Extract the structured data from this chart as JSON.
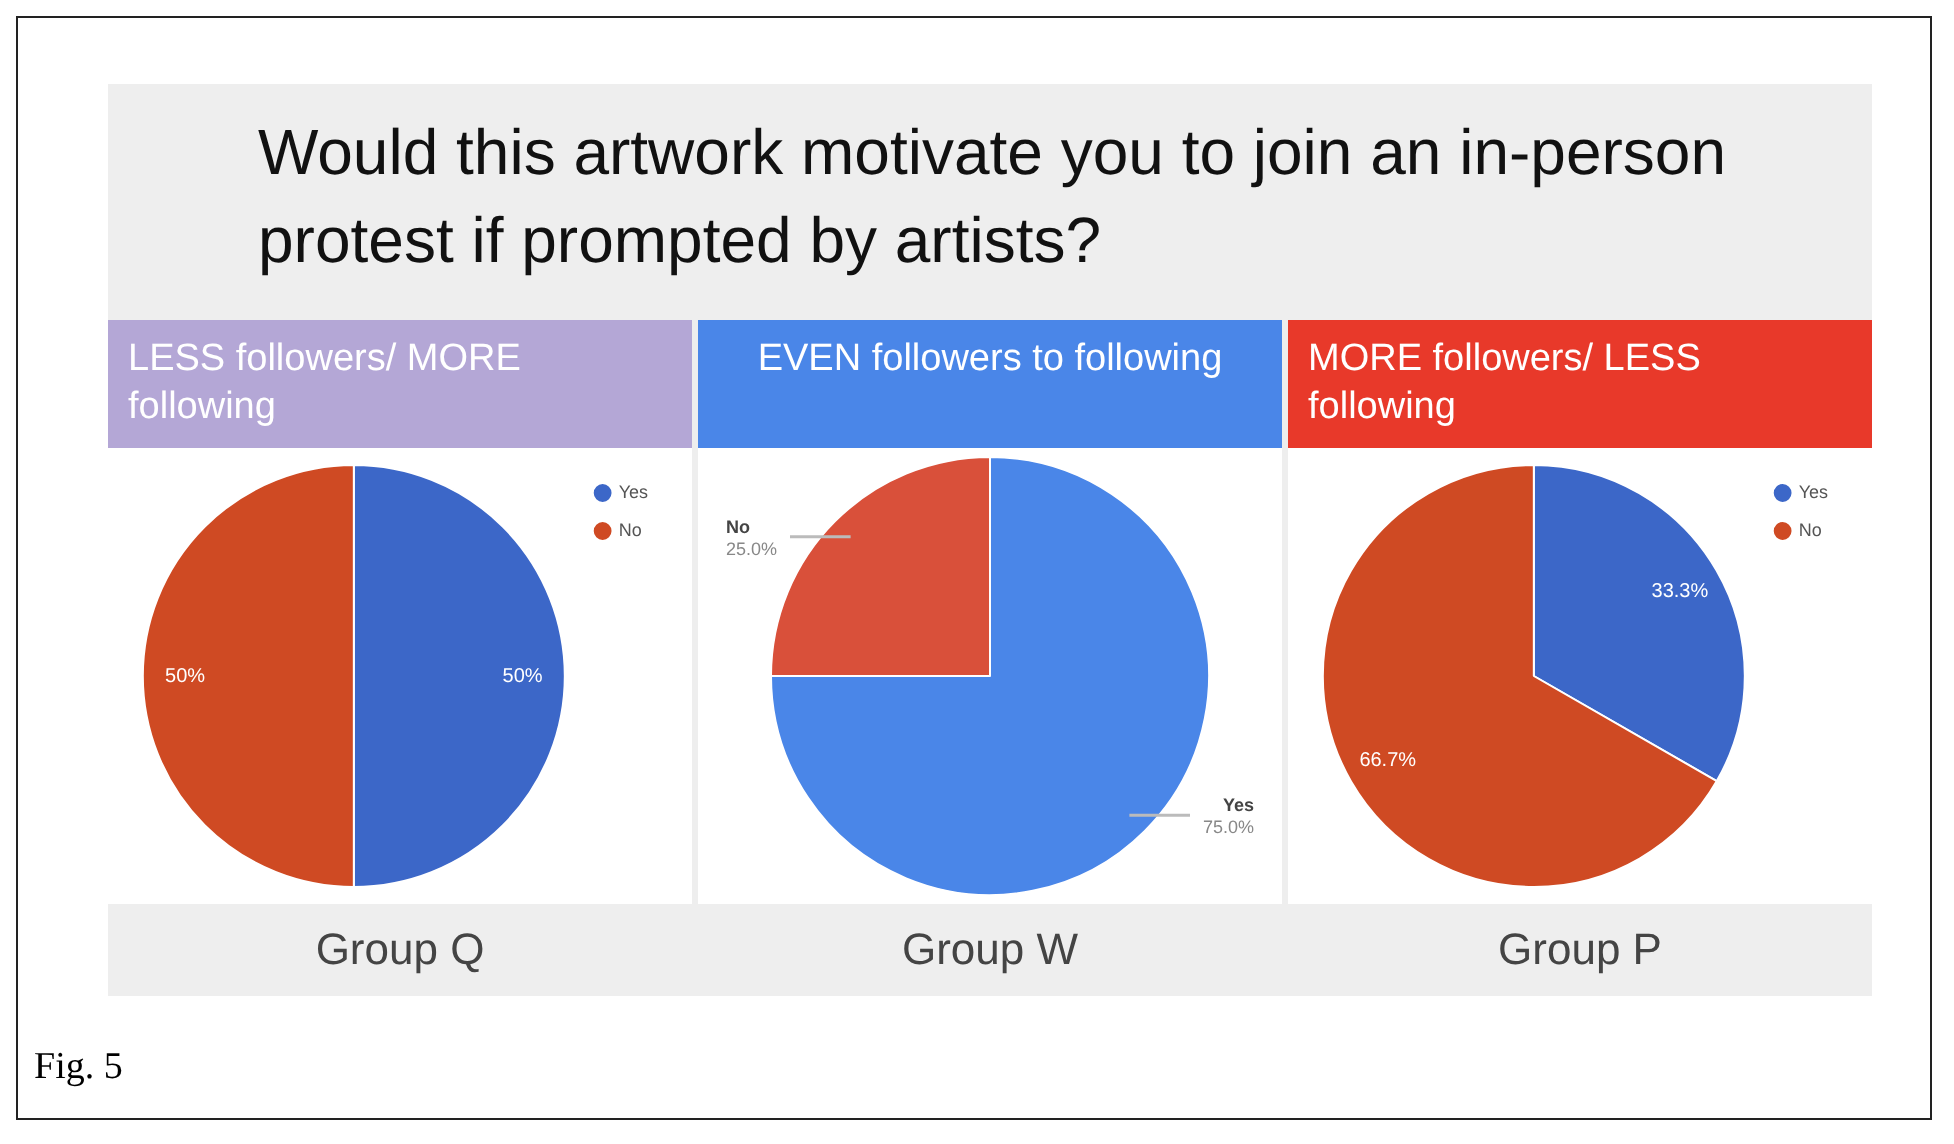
{
  "chart_data": [
    {
      "type": "pie",
      "title": "Would this artwork motivate you to join an in-person protest if prompted by artists?",
      "subtitle": "LESS followers/ MORE following",
      "xlabel": "Group Q",
      "categories": [
        "Yes",
        "No"
      ],
      "values": [
        50,
        50
      ],
      "colors": [
        "#3c67c8",
        "#cf4a23"
      ],
      "value_labels": [
        "50%",
        "50%"
      ],
      "legend": "top right"
    },
    {
      "type": "pie",
      "subtitle": "EVEN followers to following",
      "xlabel": "Group W",
      "categories": [
        "Yes",
        "No"
      ],
      "values": [
        75,
        25
      ],
      "colors": [
        "#4a86e8",
        "#d9503a"
      ],
      "value_labels": [
        "75.0%",
        "25.0%"
      ],
      "legend": false
    },
    {
      "type": "pie",
      "subtitle": "MORE followers/ LESS following",
      "xlabel": "Group P",
      "categories": [
        "Yes",
        "No"
      ],
      "values": [
        33.3,
        66.7
      ],
      "colors": [
        "#3c67c8",
        "#cf4a23"
      ],
      "value_labels": [
        "33.3%",
        "66.7%"
      ],
      "legend": "top right",
      "annotations": [
        "Fig. 5"
      ]
    }
  ]
}
